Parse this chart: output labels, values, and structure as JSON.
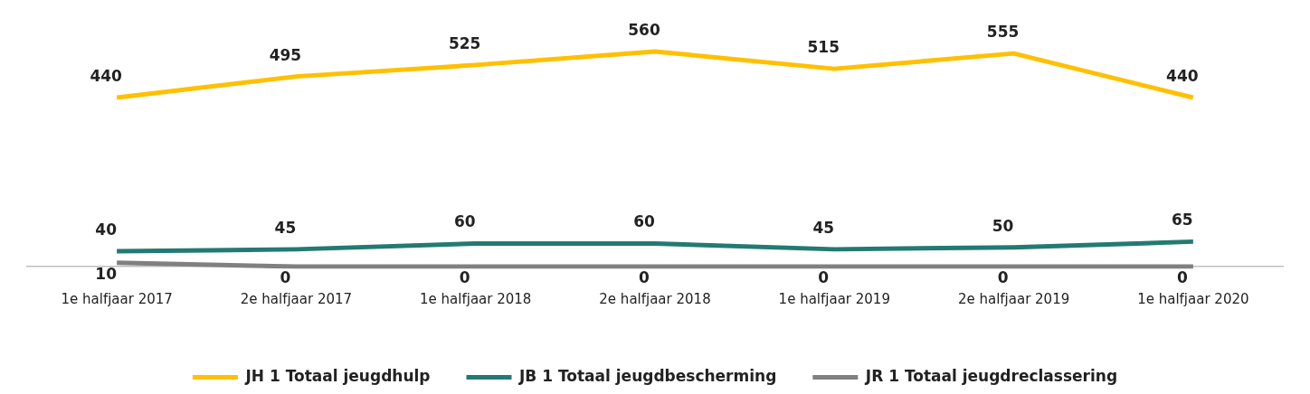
{
  "chart_data": {
    "type": "line",
    "categories": [
      "1e halfjaar 2017",
      "2e halfjaar 2017",
      "1e halfjaar 2018",
      "2e halfjaar 2018",
      "1e halfjaar 2019",
      "2e halfjaar 2019",
      "1e halfjaar 2020"
    ],
    "series": [
      {
        "name": "JH 1 Totaal jeugdhulp",
        "color": "#ffc000",
        "values": [
          440,
          495,
          525,
          560,
          515,
          555,
          440
        ]
      },
      {
        "name": "JB 1 Totaal jeugdbescherming",
        "color": "#237a73",
        "values": [
          40,
          45,
          60,
          60,
          45,
          50,
          65
        ]
      },
      {
        "name": "JR 1 Totaal jeugdreclassering",
        "color": "#808080",
        "values": [
          10,
          0,
          0,
          0,
          0,
          0,
          0
        ]
      }
    ],
    "data_labels": true,
    "grid": false,
    "legend": "bottom",
    "marker": "none"
  }
}
